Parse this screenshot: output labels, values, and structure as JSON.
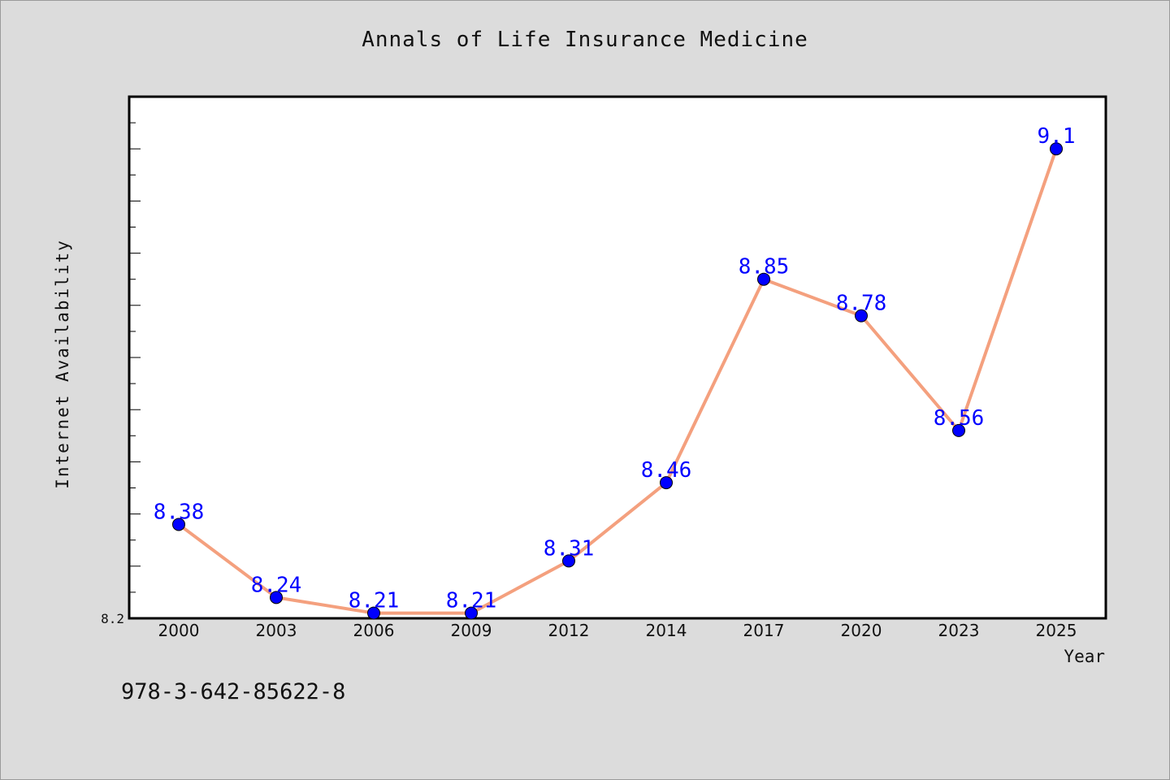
{
  "chart_data": {
    "type": "line",
    "title": "Annals of Life Insurance Medicine",
    "xlabel": "Year",
    "ylabel": "Internet Availability",
    "categories": [
      "2000",
      "2003",
      "2006",
      "2009",
      "2012",
      "2014",
      "2017",
      "2020",
      "2023",
      "2025"
    ],
    "series": [
      {
        "values": [
          8.38,
          8.24,
          8.21,
          8.21,
          8.31,
          8.46,
          8.85,
          8.78,
          8.56,
          9.1
        ],
        "labels": [
          "8.38",
          "8.24",
          "8.21",
          "8.21",
          "8.31",
          "8.46",
          "8.85",
          "8.78",
          "8.56",
          "9.1"
        ]
      }
    ],
    "ylim": [
      8.2,
      9.2
    ],
    "ytick_labels": [
      "8.2"
    ],
    "colors": {
      "line": "#f4a07e",
      "marker": "#0000ff",
      "data_label": "#0000ff",
      "plot_bg": "#ffffff",
      "page_bg": "#dcdcdc"
    },
    "grid": false,
    "legend": "none"
  },
  "footer": {
    "isbn": "978-3-642-85622-8"
  }
}
